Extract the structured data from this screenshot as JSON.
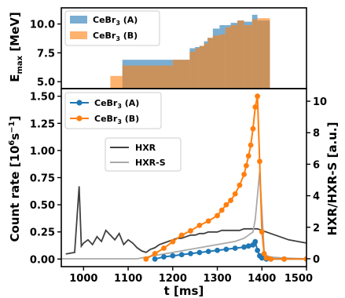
{
  "chart_data": [
    {
      "type": "bar",
      "panel": "top",
      "ylabel_main": "E",
      "ylabel_sub": "max",
      "ylabel_rest": " [MeV]",
      "xlim": [
        950,
        1500
      ],
      "ylim": [
        4.4,
        11.4
      ],
      "yticks": [
        5.0,
        7.5,
        10.0
      ],
      "ytick_labels": [
        "5.0",
        "7.5",
        "10.0"
      ],
      "legend_position": "upper-left",
      "series": [
        {
          "name": "CeBr$_3$ (A)",
          "label_main": "CeBr",
          "label_sub": "3",
          "label_rest": " (A)",
          "color": "#1f77b4",
          "alpha": 0.6,
          "steps": [
            [
              1087,
              1200,
              6.9
            ],
            [
              1200,
              1238,
              6.9
            ],
            [
              1238,
              1250,
              7.9
            ],
            [
              1250,
              1260,
              8.0
            ],
            [
              1260,
              1270,
              8.1
            ],
            [
              1270,
              1278,
              8.5
            ],
            [
              1278,
              1290,
              8.8
            ],
            [
              1290,
              1305,
              9.6
            ],
            [
              1305,
              1318,
              9.9
            ],
            [
              1318,
              1330,
              9.9
            ],
            [
              1330,
              1345,
              10.1
            ],
            [
              1345,
              1360,
              10.3
            ],
            [
              1360,
              1378,
              10.2
            ],
            [
              1378,
              1390,
              10.8
            ],
            [
              1390,
              1402,
              10.3
            ],
            [
              1402,
              1418,
              10.3
            ]
          ]
        },
        {
          "name": "CeBr$_3$ (B)",
          "label_main": "CeBr",
          "label_sub": "3",
          "label_rest": " (B)",
          "color": "#ff7f0e",
          "alpha": 0.6,
          "steps": [
            [
              1060,
              1087,
              5.5
            ],
            [
              1087,
              1200,
              6.4
            ],
            [
              1200,
              1238,
              6.9
            ],
            [
              1238,
              1250,
              7.6
            ],
            [
              1250,
              1260,
              7.9
            ],
            [
              1260,
              1270,
              8.1
            ],
            [
              1270,
              1278,
              8.3
            ],
            [
              1278,
              1290,
              8.8
            ],
            [
              1290,
              1305,
              9.0
            ],
            [
              1305,
              1318,
              9.1
            ],
            [
              1318,
              1330,
              9.7
            ],
            [
              1330,
              1345,
              9.9
            ],
            [
              1345,
              1360,
              10.3
            ],
            [
              1360,
              1378,
              9.9
            ],
            [
              1378,
              1390,
              10.4
            ],
            [
              1390,
              1402,
              10.5
            ],
            [
              1402,
              1418,
              10.5
            ]
          ]
        }
      ]
    },
    {
      "type": "line",
      "panel": "bottom",
      "xlabel": "t [ms]",
      "ylabel_left_main": "Count rate [10",
      "ylabel_left_sup": "6",
      "ylabel_left_rest": "s",
      "ylabel_left_sup2": "−1",
      "ylabel_left_end": "]",
      "ylabel_right": "HXR/HXR-S [a.u.]",
      "xlim": [
        950,
        1500
      ],
      "xticks": [
        1000,
        1100,
        1200,
        1300,
        1400,
        1500
      ],
      "xtick_labels": [
        "1000",
        "1100",
        "1200",
        "1300",
        "1400",
        "1500"
      ],
      "ylim_left": [
        -0.07,
        1.57
      ],
      "yticks_left": [
        0.0,
        0.25,
        0.5,
        0.75,
        1.0,
        1.25,
        1.5
      ],
      "ytick_labels_left": [
        "0.00",
        "0.25",
        "0.50",
        "0.75",
        "1.00",
        "1.25",
        "1.50"
      ],
      "ylim_right": [
        -0.5,
        10.8
      ],
      "yticks_right": [
        0,
        2,
        4,
        6,
        8,
        10
      ],
      "ytick_labels_right": [
        "0",
        "2",
        "4",
        "6",
        "8",
        "10"
      ],
      "legend_position_counts": "upper-left",
      "legend_position_hxr": "upper-center",
      "series": [
        {
          "name": "CeBr$_3$ (A)",
          "label_main": "CeBr",
          "label_sub": "3",
          "label_rest": " (A)",
          "axis": "left",
          "color": "#1f77b4",
          "marker": "circle",
          "x": [
            1160,
            1180,
            1200,
            1220,
            1240,
            1260,
            1280,
            1300,
            1320,
            1340,
            1360,
            1370,
            1380,
            1385,
            1390,
            1395,
            1400,
            1410,
            1420,
            1450,
            1500
          ],
          "y": [
            0.0,
            0.02,
            0.03,
            0.04,
            0.05,
            0.06,
            0.07,
            0.08,
            0.09,
            0.1,
            0.11,
            0.12,
            0.13,
            0.16,
            0.08,
            0.03,
            0.01,
            0.0,
            0.0,
            0.0,
            0.0
          ]
        },
        {
          "name": "CeBr$_3$ (B)",
          "label_main": "CeBr",
          "label_sub": "3",
          "label_rest": " (B)",
          "axis": "left",
          "color": "#ff7f0e",
          "marker": "circle",
          "x": [
            1140,
            1160,
            1180,
            1200,
            1220,
            1240,
            1260,
            1280,
            1300,
            1310,
            1320,
            1330,
            1340,
            1350,
            1360,
            1365,
            1370,
            1375,
            1380,
            1385,
            1390,
            1395,
            1400,
            1405,
            1410,
            1420,
            1450,
            1500
          ],
          "y": [
            0.0,
            0.05,
            0.1,
            0.16,
            0.22,
            0.26,
            0.31,
            0.35,
            0.4,
            0.45,
            0.5,
            0.54,
            0.6,
            0.68,
            0.78,
            0.86,
            0.95,
            1.05,
            1.2,
            1.4,
            1.5,
            0.9,
            0.25,
            0.05,
            0.01,
            0.0,
            0.0,
            0.0
          ]
        },
        {
          "name": "HXR",
          "axis": "right",
          "color": "#404040",
          "x": [
            960,
            980,
            990,
            995,
            1000,
            1010,
            1020,
            1030,
            1040,
            1050,
            1060,
            1070,
            1080,
            1090,
            1100,
            1110,
            1120,
            1130,
            1140,
            1150,
            1160,
            1170,
            1180,
            1190,
            1200,
            1210,
            1220,
            1230,
            1240,
            1250,
            1260,
            1270,
            1280,
            1290,
            1300,
            1310,
            1320,
            1330,
            1340,
            1350,
            1360,
            1370,
            1380,
            1390,
            1400,
            1410,
            1420,
            1440,
            1460,
            1480,
            1500
          ],
          "y": [
            0.3,
            0.4,
            4.6,
            0.8,
            1.0,
            1.2,
            0.9,
            1.4,
            1.1,
            1.8,
            1.5,
            1.2,
            1.6,
            0.9,
            1.2,
            1.0,
            0.7,
            0.5,
            0.4,
            0.6,
            0.7,
            0.9,
            1.0,
            1.1,
            1.2,
            1.3,
            1.3,
            1.4,
            1.5,
            1.5,
            1.6,
            1.6,
            1.7,
            1.7,
            1.7,
            1.8,
            1.8,
            1.8,
            1.8,
            1.8,
            1.9,
            1.9,
            1.9,
            1.9,
            1.8,
            1.7,
            1.6,
            1.4,
            1.2,
            1.1,
            1.0
          ]
        },
        {
          "name": "HXR-S",
          "axis": "right",
          "color": "#a9a9a9",
          "x": [
            950,
            1000,
            1050,
            1100,
            1120,
            1140,
            1160,
            1180,
            1200,
            1220,
            1240,
            1260,
            1280,
            1300,
            1320,
            1340,
            1350,
            1360,
            1370,
            1380,
            1385,
            1390,
            1395,
            1400,
            1405,
            1410,
            1420,
            1450,
            1500
          ],
          "y": [
            0.0,
            0.0,
            0.0,
            0.0,
            0.0,
            0.1,
            0.2,
            0.3,
            0.4,
            0.5,
            0.6,
            0.7,
            0.8,
            0.9,
            1.0,
            1.1,
            1.2,
            1.3,
            1.5,
            1.7,
            2.5,
            4.0,
            5.5,
            3.0,
            0.5,
            0.2,
            0.1,
            0.05,
            0.0
          ]
        }
      ]
    }
  ]
}
